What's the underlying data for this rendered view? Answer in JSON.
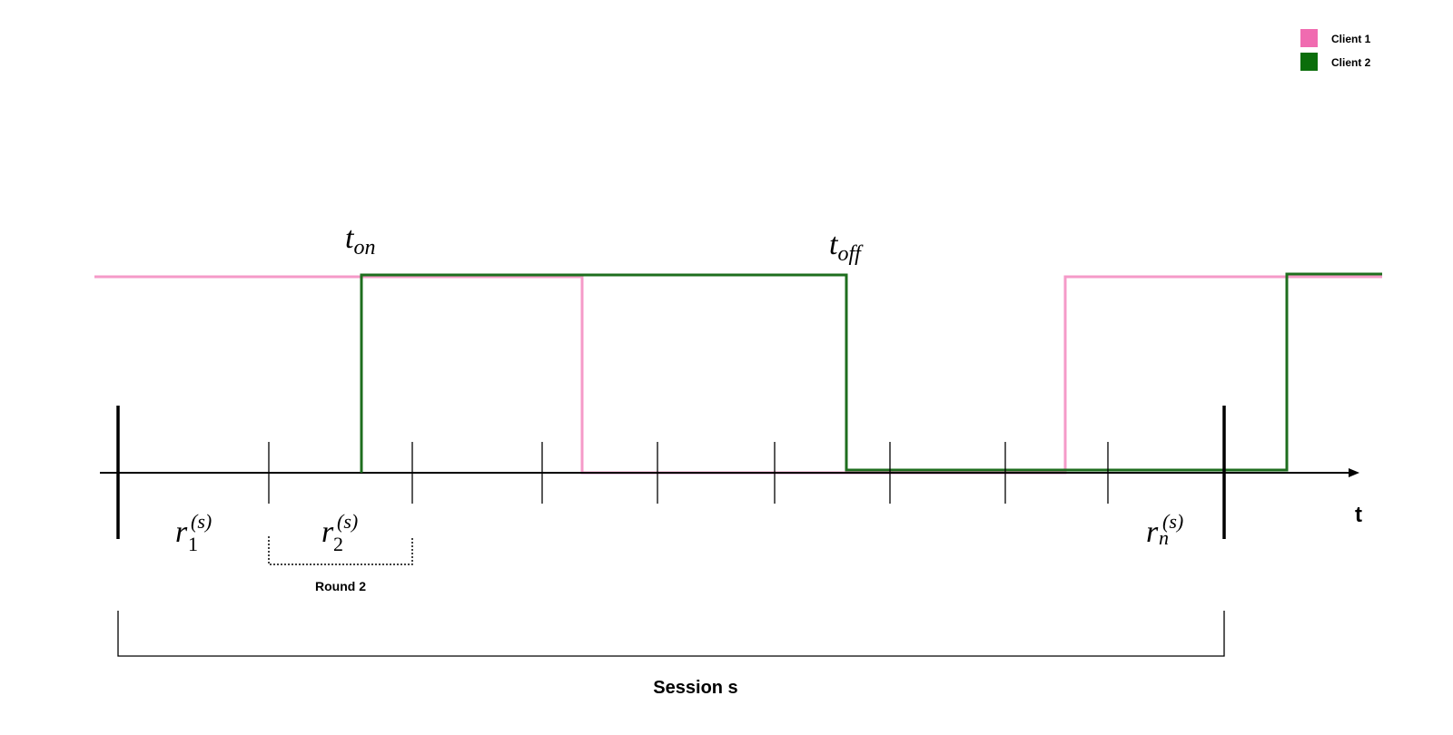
{
  "legend": {
    "items": [
      {
        "label": "Client 1",
        "color": "#f06bb0"
      },
      {
        "label": "Client 2",
        "color": "#0b6e0b"
      }
    ]
  },
  "labels": {
    "t_on": {
      "base": "t",
      "sub": "on"
    },
    "t_off": {
      "base": "t",
      "sub": "off"
    },
    "axis_t": "t",
    "round_label": "Round 2",
    "session_label": "Session s",
    "r1": {
      "base": "r",
      "sup": "(s)",
      "sub": "1"
    },
    "r2": {
      "base": "r",
      "sup": "(s)",
      "sub": "2"
    },
    "rn": {
      "base": "r",
      "sup": "(s)",
      "sub": "n"
    }
  },
  "colors": {
    "client1_line": "#f59ac8",
    "client2_line": "#1e6e1e",
    "axis": "#000000"
  }
}
